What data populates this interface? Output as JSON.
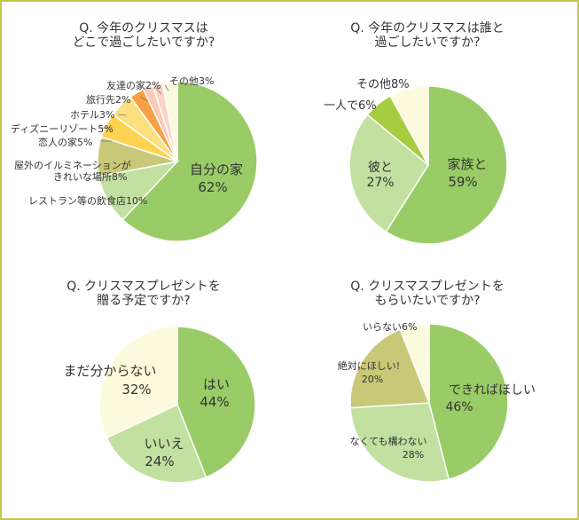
{
  "colors": {
    "border": "#c4c94b",
    "green_dark": "#99cc66",
    "green_light": "#c2e0a0",
    "olive": "#c8c878",
    "lime": "#a8cc40",
    "cream": "#fcfadc",
    "orange": "#f7a044",
    "yellow": "#fcd250",
    "pink": "#fbd3c7",
    "pink2": "#fbc9b6"
  },
  "chart_data": [
    {
      "type": "pie",
      "title": "Q. 今年のクリスマスは\nどこで過ごしたいですか?",
      "slices": [
        {
          "label": "自分の家",
          "value": 62,
          "value_label": "62%",
          "color": "#99cc66"
        },
        {
          "label": "レストラン等の飲食店",
          "value": 10,
          "value_label": "10%",
          "color": "#c2e0a0"
        },
        {
          "label": "屋外のイルミネーションが\nきれいな場所",
          "value": 8,
          "value_label": "8%",
          "color": "#c8c878"
        },
        {
          "label": "恋人の家",
          "value": 5,
          "value_label": "5%",
          "color": "#fcd250"
        },
        {
          "label": "ディズニーリゾート",
          "value": 5,
          "value_label": "5%",
          "color": "#fce080"
        },
        {
          "label": "ホテル",
          "value": 3,
          "value_label": "3%",
          "color": "#f7a044"
        },
        {
          "label": "旅行先",
          "value": 2,
          "value_label": "2%",
          "color": "#fbc9b6"
        },
        {
          "label": "友達の家",
          "value": 2,
          "value_label": "2%",
          "color": "#fbd3c7"
        },
        {
          "label": "その他",
          "value": 3,
          "value_label": "3%",
          "color": "#fcfadc"
        }
      ]
    },
    {
      "type": "pie",
      "title": "Q. 今年のクリスマスは誰と\n過ごしたいですか?",
      "slices": [
        {
          "label": "家族と",
          "value": 59,
          "value_label": "59%",
          "color": "#99cc66"
        },
        {
          "label": "彼と",
          "value": 27,
          "value_label": "27%",
          "color": "#c2e0a0"
        },
        {
          "label": "一人で",
          "value": 6,
          "value_label": "6%",
          "color": "#a8cc40"
        },
        {
          "label": "その他",
          "value": 8,
          "value_label": "8%",
          "color": "#fcfadc"
        }
      ]
    },
    {
      "type": "pie",
      "title": "Q. クリスマスプレゼントを\n贈る予定ですか?",
      "slices": [
        {
          "label": "はい",
          "value": 44,
          "value_label": "44%",
          "color": "#99cc66"
        },
        {
          "label": "いいえ",
          "value": 24,
          "value_label": "24%",
          "color": "#c2e0a0"
        },
        {
          "label": "まだ分からない",
          "value": 32,
          "value_label": "32%",
          "color": "#fcfadc"
        }
      ]
    },
    {
      "type": "pie",
      "title": "Q. クリスマスプレゼントを\nもらいたいですか?",
      "slices": [
        {
          "label": "できればほしい",
          "value": 46,
          "value_label": "46%",
          "color": "#99cc66"
        },
        {
          "label": "なくても構わない",
          "value": 28,
          "value_label": "28%",
          "color": "#c2e0a0"
        },
        {
          "label": "絶対にほしい!",
          "value": 20,
          "value_label": "20%",
          "color": "#c8c878"
        },
        {
          "label": "いらない",
          "value": 6,
          "value_label": "6%",
          "color": "#fcfadc"
        }
      ]
    }
  ]
}
